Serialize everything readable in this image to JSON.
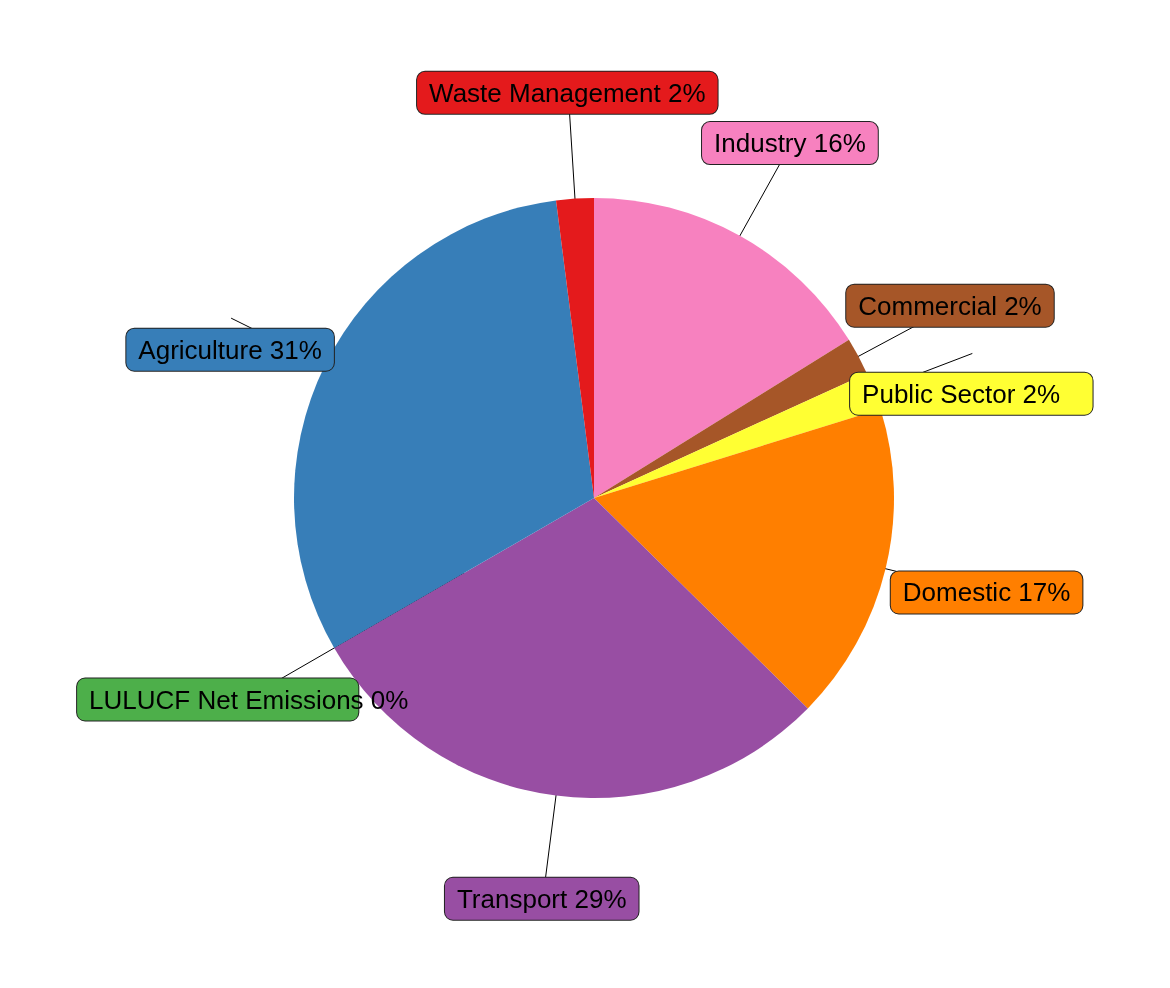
{
  "chart_data": {
    "type": "pie",
    "categories": [
      "Industry",
      "Commercial",
      "Public Sector",
      "Domestic",
      "Transport",
      "LULUCF Net Emissions",
      "Agriculture",
      "Waste Management"
    ],
    "values": [
      16,
      2,
      2,
      17,
      29,
      0,
      31,
      2
    ],
    "value_labels": [
      "16%",
      "2%",
      "2%",
      "17%",
      "29%",
      "0%",
      "31%",
      "2%"
    ],
    "colors": [
      "#f781bf",
      "#a65628",
      "#ffff33",
      "#ff7f00",
      "#984ea3",
      "#4daf4a",
      "#377eb8",
      "#e41a1c"
    ],
    "legend": false
  }
}
